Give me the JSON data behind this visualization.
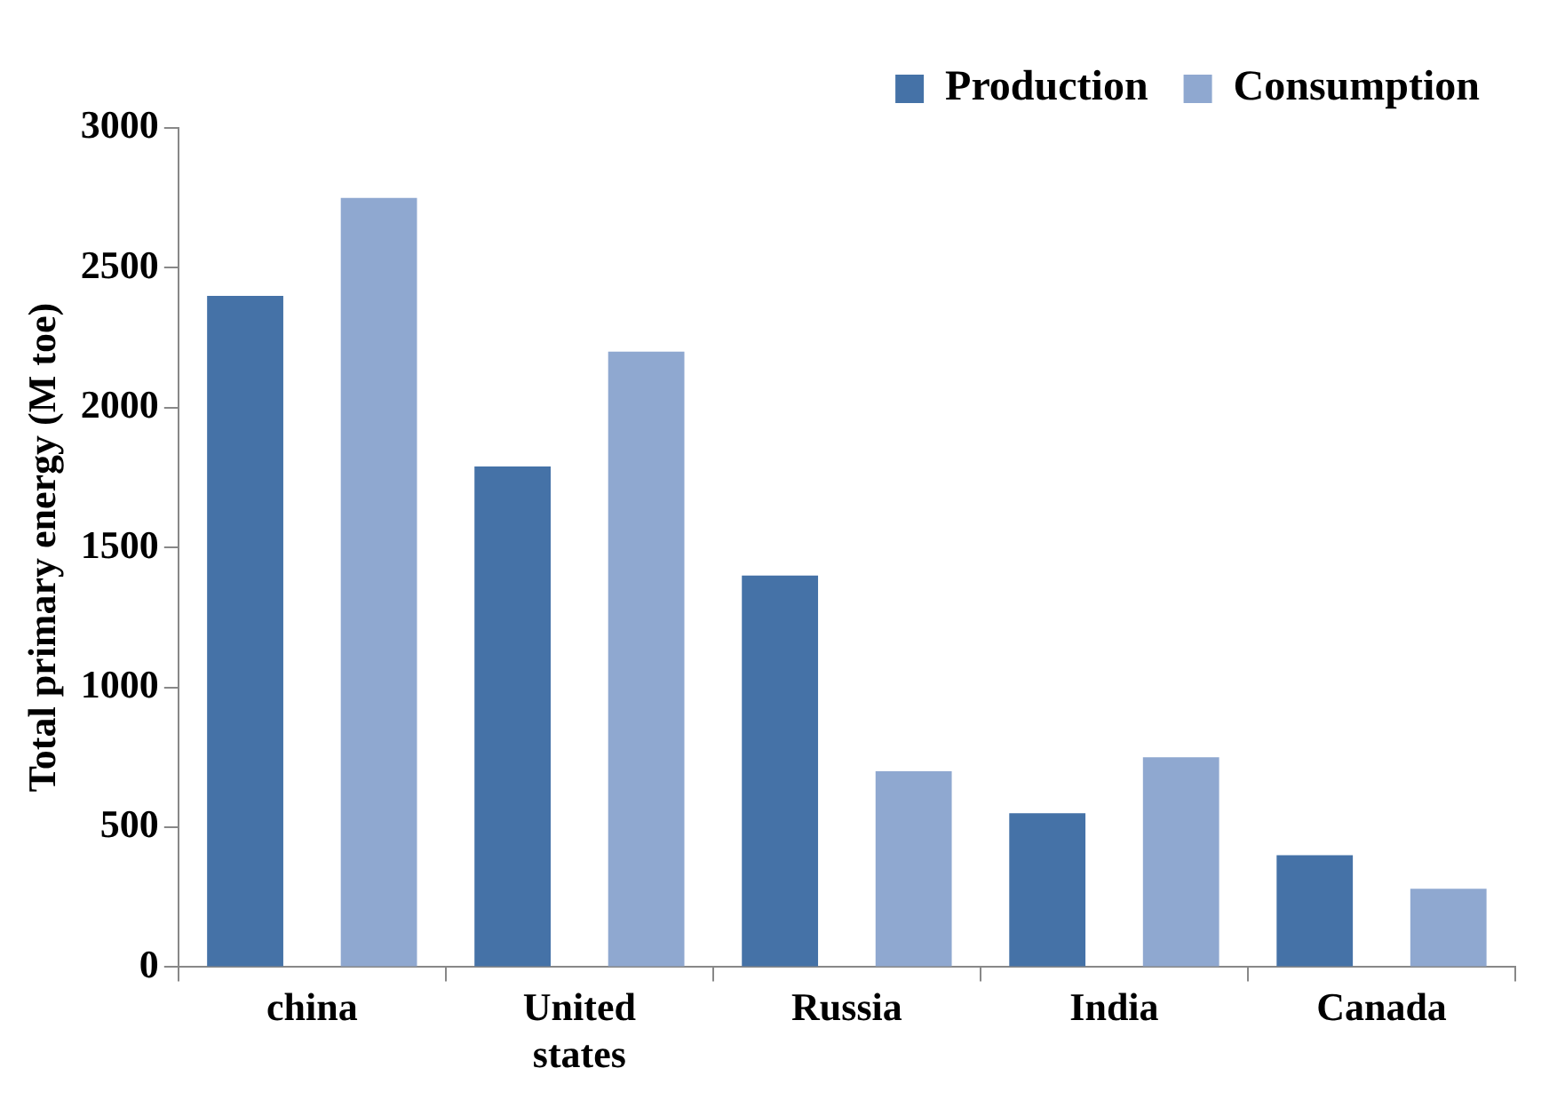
{
  "chart_data": {
    "type": "bar",
    "ylabel": "Total primary energy (M toe)",
    "categories": [
      "china",
      "United states",
      "Russia",
      "India",
      "Canada"
    ],
    "series": [
      {
        "name": "Production",
        "color": "#4572a7",
        "values": [
          2400,
          1790,
          1400,
          550,
          400
        ]
      },
      {
        "name": "Consumption",
        "color": "#8fa8d0",
        "values": [
          2750,
          2200,
          700,
          750,
          280
        ]
      }
    ],
    "ylim": [
      0,
      3000
    ],
    "yticks": [
      0,
      500,
      1000,
      1500,
      2000,
      2500,
      3000
    ],
    "grid": false,
    "legend": "top right"
  }
}
